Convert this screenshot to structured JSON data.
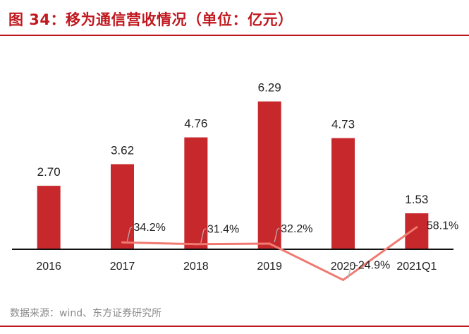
{
  "title": "图 34：移为通信营收情况（单位：亿元）",
  "source": "数据来源：wind、东方证券研究所",
  "colors": {
    "bar": "#c7282c",
    "line": "#f07a72",
    "title": "#c0181f",
    "axis": "#111111",
    "text": "#222222"
  },
  "chart_data": {
    "type": "bar",
    "unit": "亿元",
    "categories": [
      "2016",
      "2017",
      "2018",
      "2019",
      "2020",
      "2021Q1"
    ],
    "series": [
      {
        "values": [
          2.7,
          3.62,
          4.76,
          6.29,
          4.73,
          1.53
        ],
        "value_labels": [
          "2.70",
          "3.62",
          "4.76",
          "6.29",
          "4.73",
          "1.53"
        ]
      },
      {
        "type": "line",
        "values": [
          null,
          34.2,
          31.4,
          32.2,
          -24.9,
          58.1
        ],
        "value_labels": [
          "",
          "34.2%",
          "31.4%",
          "32.2%",
          "-24.9%",
          "58.1%"
        ]
      }
    ],
    "ylim": [
      0,
      7
    ],
    "grid": false,
    "legend": "none"
  }
}
